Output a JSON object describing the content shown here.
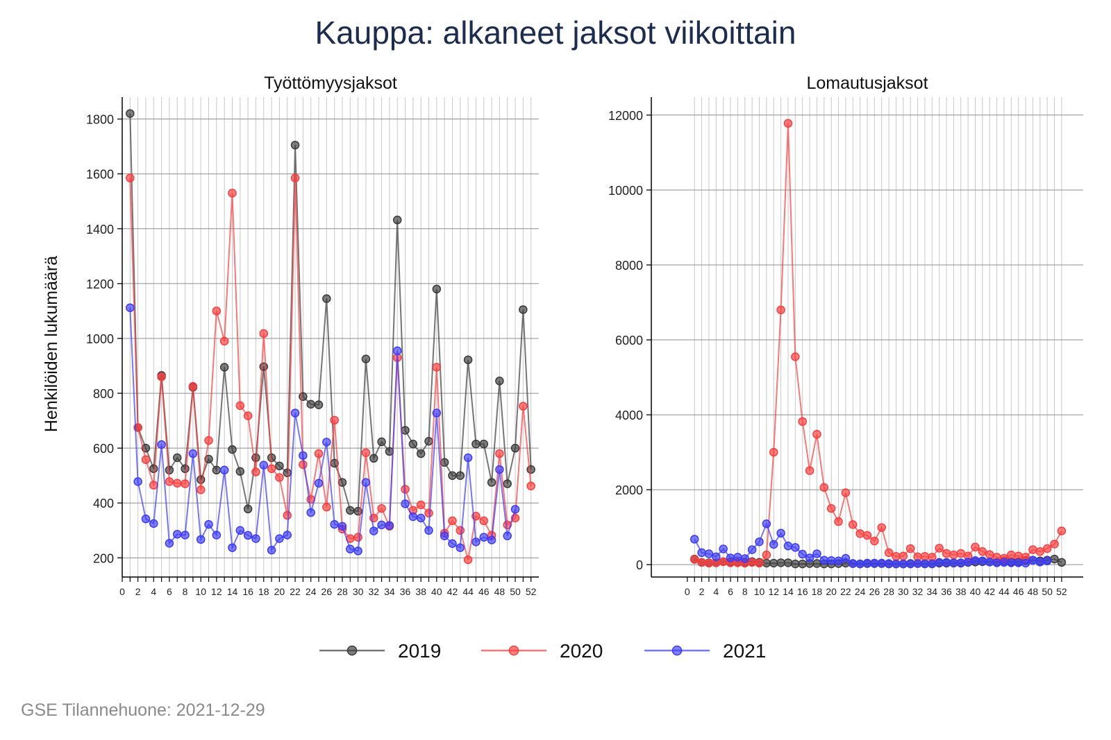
{
  "title": "Kauppa: alkaneet jaksot viikoittain",
  "source_note": "GSE Tilannehuone: 2021-12-29",
  "colors": {
    "2019": "#3a3a3a",
    "2020": "#ff3b3b",
    "2021": "#3b3bff"
  },
  "chart_data": [
    {
      "type": "line",
      "title": "Työttömyysjaksot",
      "ylabel": "Henkilöiden lukumäärä",
      "xlabel": "",
      "xlim": [
        0,
        53
      ],
      "ylim": [
        130,
        1880
      ],
      "xticks": [
        0,
        2,
        4,
        6,
        8,
        10,
        12,
        14,
        16,
        18,
        20,
        22,
        24,
        26,
        28,
        30,
        32,
        34,
        36,
        38,
        40,
        42,
        44,
        46,
        48,
        50,
        52
      ],
      "yticks": [
        200,
        400,
        600,
        800,
        1000,
        1200,
        1400,
        1600,
        1800
      ],
      "grid": true,
      "series": [
        {
          "name": "2019",
          "x": [
            1,
            2,
            3,
            4,
            5,
            6,
            7,
            8,
            9,
            10,
            11,
            12,
            13,
            14,
            15,
            16,
            17,
            18,
            19,
            20,
            21,
            22,
            23,
            24,
            25,
            26,
            27,
            28,
            29,
            30,
            31,
            32,
            33,
            34,
            35,
            36,
            37,
            38,
            39,
            40,
            41,
            42,
            43,
            44,
            45,
            46,
            47,
            48,
            49,
            50,
            51,
            52
          ],
          "values": [
            1820,
            675,
            600,
            525,
            865,
            520,
            565,
            525,
            822,
            485,
            560,
            520,
            895,
            595,
            515,
            378,
            565,
            897,
            565,
            535,
            510,
            1705,
            788,
            760,
            758,
            1145,
            545,
            475,
            373,
            370,
            925,
            563,
            623,
            588,
            1432,
            665,
            615,
            580,
            625,
            1180,
            548,
            500,
            500,
            922,
            615,
            615,
            475,
            845,
            470,
            600,
            1105,
            522
          ]
        },
        {
          "name": "2020",
          "x": [
            1,
            2,
            3,
            4,
            5,
            6,
            7,
            8,
            9,
            10,
            11,
            12,
            13,
            14,
            15,
            16,
            17,
            18,
            19,
            20,
            21,
            22,
            23,
            24,
            25,
            26,
            27,
            28,
            29,
            30,
            31,
            32,
            33,
            34,
            35,
            36,
            37,
            38,
            39,
            40,
            41,
            42,
            43,
            44,
            45,
            46,
            47,
            48,
            49,
            50,
            51,
            52
          ],
          "values": [
            1585,
            675,
            558,
            465,
            860,
            478,
            472,
            470,
            825,
            448,
            628,
            1100,
            990,
            1530,
            755,
            718,
            513,
            1018,
            525,
            493,
            355,
            1585,
            540,
            413,
            580,
            385,
            702,
            305,
            270,
            275,
            583,
            345,
            380,
            315,
            930,
            450,
            373,
            393,
            363,
            895,
            290,
            335,
            300,
            193,
            352,
            335,
            282,
            580,
            320,
            345,
            753,
            462
          ]
        },
        {
          "name": "2021",
          "x": [
            1,
            2,
            3,
            4,
            5,
            6,
            7,
            8,
            9,
            10,
            11,
            12,
            13,
            14,
            15,
            16,
            17,
            18,
            19,
            20,
            21,
            22,
            23,
            24,
            25,
            26,
            27,
            28,
            29,
            30,
            31,
            32,
            33,
            34,
            35,
            36,
            37,
            38,
            39,
            40,
            41,
            42,
            43,
            44,
            45,
            46,
            47,
            48,
            49,
            50
          ],
          "values": [
            1112,
            478,
            342,
            325,
            613,
            253,
            286,
            283,
            580,
            267,
            322,
            283,
            520,
            237,
            300,
            282,
            270,
            538,
            228,
            270,
            283,
            728,
            573,
            365,
            472,
            622,
            322,
            315,
            232,
            225,
            475,
            298,
            320,
            318,
            955,
            397,
            350,
            345,
            300,
            728,
            280,
            252,
            237,
            565,
            258,
            275,
            265,
            522,
            280,
            377
          ]
        }
      ]
    },
    {
      "type": "line",
      "title": "Lomautusjaksot",
      "ylabel": "",
      "xlabel": "",
      "xlim": [
        -5,
        55
      ],
      "ylim": [
        -330,
        12480
      ],
      "xticks": [
        0,
        2,
        4,
        6,
        8,
        10,
        12,
        14,
        16,
        18,
        20,
        22,
        24,
        26,
        28,
        30,
        32,
        34,
        36,
        38,
        40,
        42,
        44,
        46,
        48,
        50,
        52
      ],
      "yticks": [
        0,
        2000,
        4000,
        6000,
        8000,
        10000,
        12000
      ],
      "grid": true,
      "series": [
        {
          "name": "2019",
          "x": [
            1,
            2,
            3,
            4,
            5,
            6,
            7,
            8,
            9,
            10,
            11,
            12,
            13,
            14,
            15,
            16,
            17,
            18,
            19,
            20,
            21,
            22,
            23,
            24,
            25,
            26,
            27,
            28,
            29,
            30,
            31,
            32,
            33,
            34,
            35,
            36,
            37,
            38,
            39,
            40,
            41,
            42,
            43,
            44,
            45,
            46,
            47,
            48,
            49,
            50,
            51,
            52
          ],
          "values": [
            150,
            60,
            50,
            50,
            80,
            70,
            60,
            60,
            80,
            60,
            40,
            40,
            50,
            50,
            20,
            20,
            30,
            30,
            20,
            20,
            30,
            40,
            30,
            20,
            30,
            30,
            30,
            20,
            20,
            20,
            30,
            30,
            30,
            30,
            40,
            40,
            40,
            40,
            60,
            70,
            80,
            70,
            60,
            100,
            80,
            80,
            110,
            120,
            100,
            120,
            150,
            60
          ]
        },
        {
          "name": "2020",
          "x": [
            1,
            2,
            3,
            4,
            5,
            6,
            7,
            8,
            9,
            10,
            11,
            12,
            13,
            14,
            15,
            16,
            17,
            18,
            19,
            20,
            21,
            22,
            23,
            24,
            25,
            26,
            27,
            28,
            29,
            30,
            31,
            32,
            33,
            34,
            35,
            36,
            37,
            38,
            39,
            40,
            41,
            42,
            43,
            44,
            45,
            46,
            47,
            48,
            49,
            50,
            51,
            52
          ],
          "values": [
            140,
            60,
            40,
            50,
            80,
            50,
            50,
            40,
            60,
            40,
            260,
            3000,
            6800,
            11780,
            5550,
            3820,
            2510,
            3480,
            2060,
            1500,
            1150,
            1920,
            1070,
            830,
            780,
            630,
            990,
            320,
            220,
            230,
            430,
            210,
            220,
            200,
            440,
            300,
            260,
            300,
            230,
            470,
            350,
            270,
            200,
            170,
            260,
            230,
            200,
            400,
            350,
            430,
            550,
            900
          ]
        },
        {
          "name": "2021",
          "x": [
            1,
            2,
            3,
            4,
            5,
            6,
            7,
            8,
            9,
            10,
            11,
            12,
            13,
            14,
            15,
            16,
            17,
            18,
            19,
            20,
            21,
            22,
            23,
            24,
            25,
            26,
            27,
            28,
            29,
            30,
            31,
            32,
            33,
            34,
            35,
            36,
            37,
            38,
            39,
            40,
            41,
            42,
            43,
            44,
            45,
            46,
            47,
            48,
            49,
            50
          ],
          "values": [
            680,
            320,
            290,
            210,
            420,
            180,
            200,
            160,
            400,
            610,
            1090,
            540,
            840,
            500,
            460,
            280,
            180,
            290,
            120,
            110,
            100,
            170,
            30,
            20,
            40,
            40,
            40,
            30,
            20,
            20,
            20,
            30,
            20,
            20,
            60,
            60,
            50,
            50,
            70,
            110,
            100,
            70,
            50,
            60,
            50,
            50,
            40,
            120,
            70,
            100
          ]
        }
      ]
    }
  ]
}
